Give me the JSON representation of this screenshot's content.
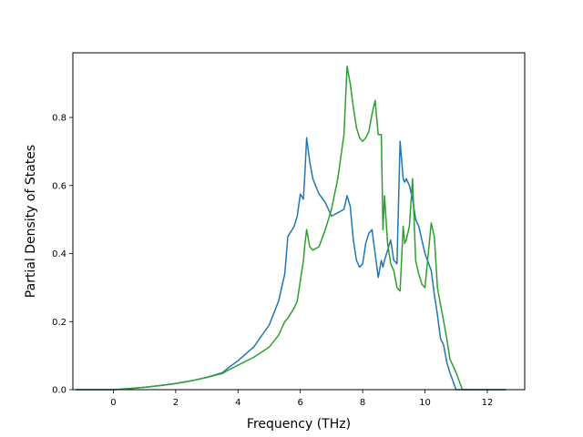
{
  "chart_data": {
    "type": "line",
    "title": "",
    "xlabel": "Frequency (THz)",
    "ylabel": "Partial Density of States",
    "xlim": [
      -1.3,
      13.2
    ],
    "ylim": [
      0.0,
      0.99
    ],
    "xticks": [
      0,
      2,
      4,
      6,
      8,
      10,
      12
    ],
    "yticks": [
      0.0,
      0.2,
      0.4,
      0.6,
      0.8
    ],
    "ytick_labels": [
      "0.0",
      "0.2",
      "0.4",
      "0.6",
      "0.8"
    ],
    "grid": false,
    "legend": "none",
    "series": [
      {
        "color": "#1f77b4",
        "x": [
          -1.2,
          0.0,
          0.5,
          1.0,
          1.5,
          2.0,
          2.5,
          3.0,
          3.5,
          3.7,
          4.0,
          4.5,
          5.0,
          5.3,
          5.5,
          5.6,
          5.8,
          5.9,
          6.0,
          6.1,
          6.15,
          6.2,
          6.3,
          6.4,
          6.6,
          6.8,
          7.0,
          7.2,
          7.4,
          7.5,
          7.6,
          7.7,
          7.8,
          7.9,
          8.0,
          8.1,
          8.2,
          8.3,
          8.4,
          8.5,
          8.6,
          8.65,
          8.7,
          8.8,
          8.9,
          9.0,
          9.1,
          9.2,
          9.3,
          9.35,
          9.4,
          9.5,
          9.6,
          9.7,
          9.8,
          9.9,
          10.0,
          10.2,
          10.3,
          10.4,
          10.5,
          10.6,
          10.7,
          10.8,
          11.0,
          11.2,
          11.4,
          11.5,
          12.6
        ],
        "values": [
          0.0,
          0.0,
          0.003,
          0.007,
          0.012,
          0.018,
          0.026,
          0.036,
          0.05,
          0.065,
          0.085,
          0.125,
          0.19,
          0.26,
          0.34,
          0.45,
          0.48,
          0.51,
          0.575,
          0.56,
          0.64,
          0.74,
          0.67,
          0.62,
          0.575,
          0.55,
          0.51,
          0.52,
          0.53,
          0.57,
          0.54,
          0.44,
          0.38,
          0.36,
          0.37,
          0.43,
          0.46,
          0.47,
          0.4,
          0.33,
          0.38,
          0.36,
          0.38,
          0.41,
          0.44,
          0.38,
          0.37,
          0.73,
          0.62,
          0.61,
          0.62,
          0.6,
          0.56,
          0.5,
          0.48,
          0.44,
          0.4,
          0.35,
          0.28,
          0.22,
          0.15,
          0.13,
          0.08,
          0.05,
          0.0,
          0.0,
          0.0,
          0.0,
          0.0
        ]
      },
      {
        "color": "#2ca02c",
        "x": [
          -1.2,
          0.0,
          0.5,
          1.0,
          1.5,
          2.0,
          2.5,
          3.0,
          3.5,
          3.7,
          4.0,
          4.5,
          5.0,
          5.3,
          5.5,
          5.6,
          5.8,
          5.9,
          6.0,
          6.1,
          6.15,
          6.2,
          6.3,
          6.4,
          6.6,
          6.8,
          7.0,
          7.2,
          7.4,
          7.5,
          7.6,
          7.7,
          7.8,
          7.9,
          8.0,
          8.1,
          8.2,
          8.3,
          8.4,
          8.5,
          8.6,
          8.65,
          8.7,
          8.8,
          8.9,
          9.0,
          9.1,
          9.2,
          9.3,
          9.35,
          9.4,
          9.5,
          9.6,
          9.7,
          9.8,
          9.9,
          10.0,
          10.2,
          10.3,
          10.4,
          10.5,
          10.6,
          10.7,
          10.8,
          11.0,
          11.2,
          11.4,
          11.5,
          12.6
        ],
        "values": [
          0.0,
          0.0,
          0.003,
          0.007,
          0.012,
          0.018,
          0.026,
          0.036,
          0.048,
          0.058,
          0.072,
          0.095,
          0.125,
          0.16,
          0.2,
          0.21,
          0.24,
          0.26,
          0.32,
          0.38,
          0.43,
          0.47,
          0.42,
          0.41,
          0.42,
          0.47,
          0.53,
          0.62,
          0.75,
          0.95,
          0.9,
          0.83,
          0.77,
          0.74,
          0.73,
          0.74,
          0.76,
          0.81,
          0.85,
          0.75,
          0.75,
          0.47,
          0.57,
          0.43,
          0.37,
          0.35,
          0.3,
          0.29,
          0.48,
          0.43,
          0.44,
          0.48,
          0.62,
          0.38,
          0.34,
          0.31,
          0.3,
          0.49,
          0.45,
          0.3,
          0.25,
          0.2,
          0.15,
          0.09,
          0.05,
          0.0,
          0.0,
          0.0,
          0.0
        ]
      }
    ]
  }
}
